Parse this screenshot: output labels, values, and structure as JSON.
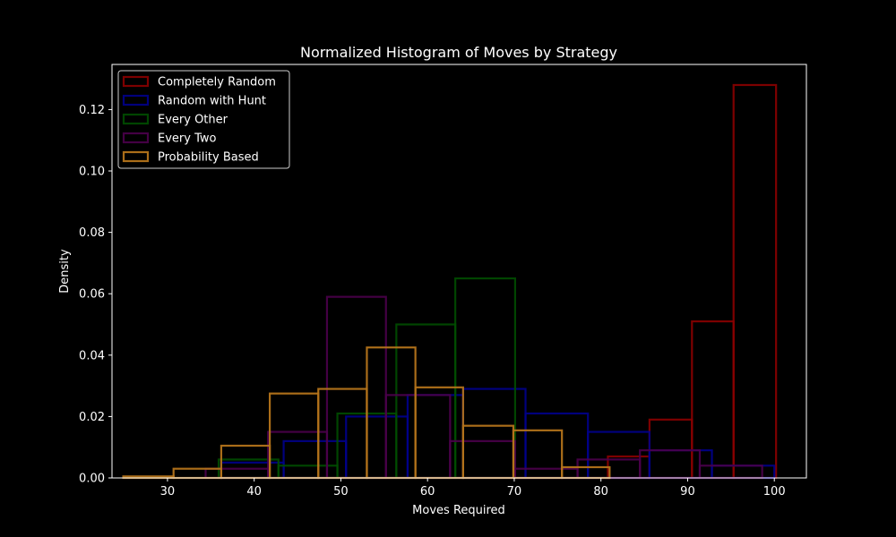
{
  "chart_data": {
    "type": "bar",
    "title": "Normalized Histogram of Moves by Strategy",
    "xlabel": "Moves Required",
    "ylabel": "Density",
    "xlim": [
      23.6,
      103.7
    ],
    "ylim": [
      0,
      0.1347
    ],
    "xticks": [
      30,
      40,
      50,
      60,
      70,
      80,
      90,
      100
    ],
    "yticks": [
      0.0,
      0.02,
      0.04,
      0.06,
      0.08,
      0.1,
      0.12
    ],
    "ytick_labels": [
      "0.00",
      "0.02",
      "0.04",
      "0.06",
      "0.08",
      "0.10",
      "0.12"
    ],
    "legend_position": "upper-left",
    "background": "#000000",
    "series": [
      {
        "name": "Completely Random",
        "color": "#8b0000",
        "opacity": 0.9,
        "bins": [
          {
            "x0": 80.8,
            "x1": 85.6,
            "density": 0.007
          },
          {
            "x0": 85.6,
            "x1": 90.5,
            "density": 0.019
          },
          {
            "x0": 90.5,
            "x1": 95.3,
            "density": 0.051
          },
          {
            "x0": 95.3,
            "x1": 100.2,
            "density": 0.128
          }
        ]
      },
      {
        "name": "Random with Hunt",
        "color": "#00008b",
        "opacity": 0.9,
        "bins": [
          {
            "x0": 36.2,
            "x1": 43.4,
            "density": 0.005
          },
          {
            "x0": 43.4,
            "x1": 50.6,
            "density": 0.012
          },
          {
            "x0": 50.6,
            "x1": 57.7,
            "density": 0.02
          },
          {
            "x0": 57.7,
            "x1": 64.1,
            "density": 0.027
          },
          {
            "x0": 64.1,
            "x1": 71.3,
            "density": 0.029
          },
          {
            "x0": 71.3,
            "x1": 78.5,
            "density": 0.021
          },
          {
            "x0": 78.5,
            "x1": 85.6,
            "density": 0.015
          },
          {
            "x0": 85.6,
            "x1": 92.8,
            "density": 0.009
          },
          {
            "x0": 92.8,
            "x1": 100.0,
            "density": 0.004
          }
        ]
      },
      {
        "name": "Every Other",
        "color": "#004d00",
        "opacity": 0.9,
        "bins": [
          {
            "x0": 35.9,
            "x1": 42.8,
            "density": 0.006
          },
          {
            "x0": 42.8,
            "x1": 49.6,
            "density": 0.004
          },
          {
            "x0": 49.6,
            "x1": 56.4,
            "density": 0.021
          },
          {
            "x0": 56.4,
            "x1": 63.2,
            "density": 0.05
          },
          {
            "x0": 63.2,
            "x1": 70.1,
            "density": 0.065
          }
        ]
      },
      {
        "name": "Every Two",
        "color": "#4b004b",
        "opacity": 0.9,
        "bins": [
          {
            "x0": 34.4,
            "x1": 41.6,
            "density": 0.003
          },
          {
            "x0": 41.6,
            "x1": 48.4,
            "density": 0.015
          },
          {
            "x0": 48.4,
            "x1": 55.2,
            "density": 0.059
          },
          {
            "x0": 55.2,
            "x1": 62.6,
            "density": 0.027
          },
          {
            "x0": 62.6,
            "x1": 70.1,
            "density": 0.012
          },
          {
            "x0": 70.1,
            "x1": 77.3,
            "density": 0.003
          },
          {
            "x0": 77.3,
            "x1": 84.5,
            "density": 0.006
          },
          {
            "x0": 84.5,
            "x1": 91.4,
            "density": 0.009
          },
          {
            "x0": 91.4,
            "x1": 98.6,
            "density": 0.004
          }
        ]
      },
      {
        "name": "Probability Based",
        "color": "#b3731a",
        "opacity": 0.95,
        "bins": [
          {
            "x0": 24.9,
            "x1": 30.7,
            "density": 0.0005
          },
          {
            "x0": 30.7,
            "x1": 36.2,
            "density": 0.003
          },
          {
            "x0": 36.2,
            "x1": 41.8,
            "density": 0.0105
          },
          {
            "x0": 41.8,
            "x1": 47.4,
            "density": 0.0275
          },
          {
            "x0": 47.4,
            "x1": 53.0,
            "density": 0.029
          },
          {
            "x0": 53.0,
            "x1": 58.6,
            "density": 0.0425
          },
          {
            "x0": 58.6,
            "x1": 64.1,
            "density": 0.0295
          },
          {
            "x0": 64.1,
            "x1": 69.9,
            "density": 0.017
          },
          {
            "x0": 69.9,
            "x1": 75.5,
            "density": 0.0155
          },
          {
            "x0": 75.5,
            "x1": 81.0,
            "density": 0.0035
          }
        ]
      }
    ]
  }
}
